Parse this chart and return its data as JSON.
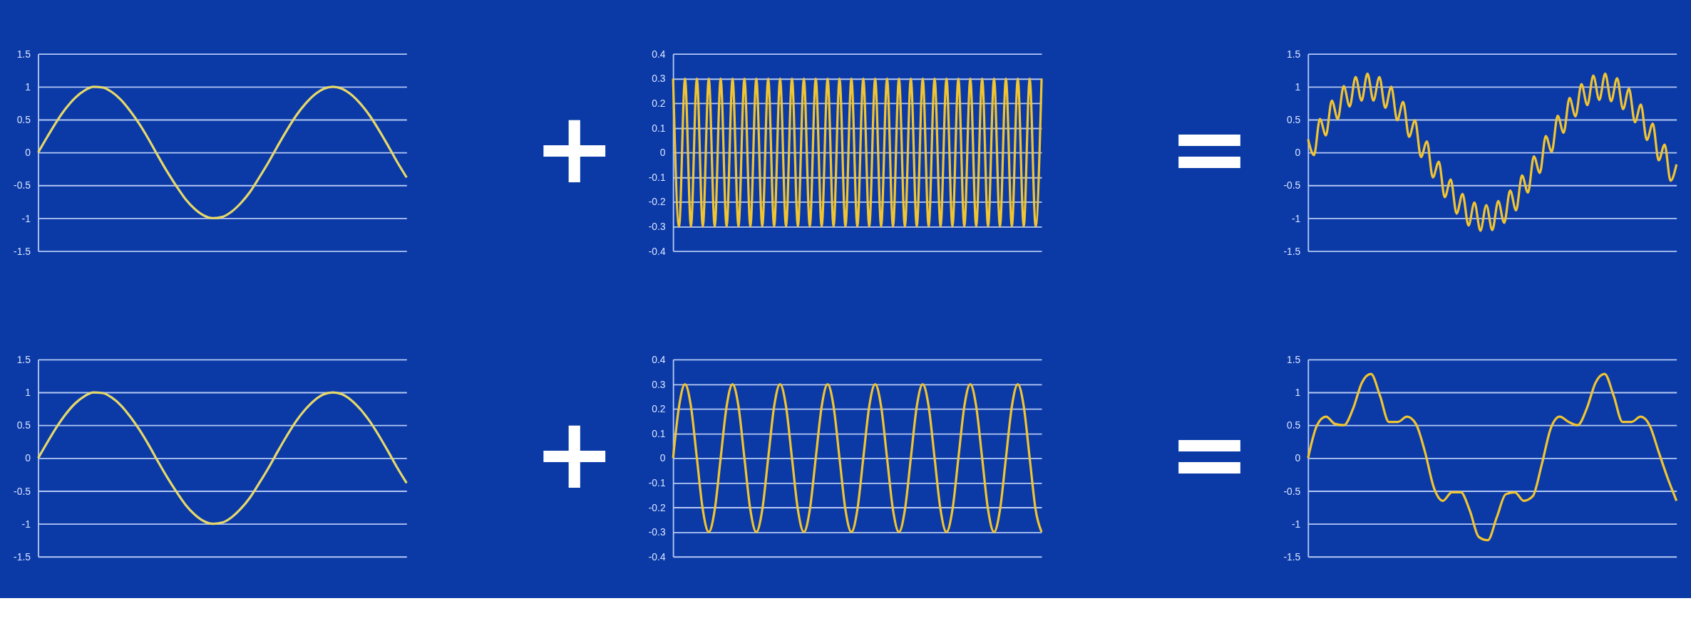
{
  "chart_data": [
    {
      "type": "line",
      "categories": [
        null,
        null,
        null,
        null,
        null,
        null,
        null,
        null,
        null,
        null,
        null,
        null,
        null,
        null,
        null,
        null,
        null,
        null,
        null,
        null,
        null,
        null,
        null,
        null,
        null,
        null,
        null,
        null,
        null,
        null,
        null,
        null,
        null,
        null,
        null,
        null,
        null,
        null,
        null,
        null,
        null
      ],
      "series": [
        {
          "color": "#e6d86a",
          "values": [
            0,
            0.24,
            0.47,
            0.67,
            0.83,
            0.94,
            1.0,
            0.99,
            0.92,
            0.8,
            0.63,
            0.43,
            0.2,
            -0.05,
            -0.29,
            -0.51,
            -0.71,
            -0.86,
            -0.96,
            -1.0,
            -0.98,
            -0.9,
            -0.77,
            -0.6,
            -0.38,
            -0.15,
            0.1,
            0.34,
            0.56,
            0.74,
            0.88,
            0.97,
            1.0,
            0.97,
            0.88,
            0.74,
            0.56,
            0.34,
            0.1,
            -0.15,
            -0.38
          ]
        }
      ],
      "ylim": [
        -1.5,
        1.5
      ],
      "yticks": [
        -1.5,
        -1,
        -0.5,
        0,
        0.5,
        1,
        1.5
      ],
      "grid": "y",
      "tick_labels": "y",
      "line_style": "solid"
    },
    {
      "type": "line",
      "categories": [
        null,
        null,
        null,
        null,
        null,
        null,
        null,
        null,
        null,
        null,
        null,
        null,
        null,
        null,
        null,
        null,
        null,
        null,
        null,
        null,
        null,
        null,
        null,
        null,
        null,
        null,
        null,
        null,
        null,
        null,
        null,
        null,
        null,
        null,
        null,
        null,
        null,
        null,
        null,
        null,
        null,
        null,
        null,
        null,
        null,
        null,
        null,
        null,
        null,
        null,
        null,
        null,
        null,
        null,
        null,
        null,
        null,
        null,
        null,
        null,
        null,
        null,
        null
      ],
      "series": [
        {
          "color": "#f0c432",
          "values": [
            0.3,
            -0.3,
            0.3,
            -0.3,
            0.3,
            -0.3,
            0.3,
            -0.3,
            0.3,
            -0.3,
            0.3,
            -0.3,
            0.3,
            -0.3,
            0.3,
            -0.3,
            0.3,
            -0.3,
            0.3,
            -0.3,
            0.3,
            -0.3,
            0.3,
            -0.3,
            0.3,
            -0.3,
            0.3,
            -0.3,
            0.3,
            -0.3,
            0.3,
            -0.3,
            0.3,
            -0.3,
            0.3,
            -0.3,
            0.3,
            -0.3,
            0.3,
            -0.3,
            0.3,
            -0.3,
            0.3,
            -0.3,
            0.3,
            -0.3,
            0.3,
            -0.3,
            0.3,
            -0.3,
            0.3,
            -0.3,
            0.3,
            -0.3,
            0.3,
            -0.3,
            0.3,
            -0.3,
            0.3,
            -0.3,
            0.3,
            -0.3,
            0.3
          ]
        }
      ],
      "ylim": [
        -0.4,
        0.4
      ],
      "yticks": [
        -0.4,
        -0.3,
        -0.2,
        -0.1,
        0,
        0.1,
        0.2,
        0.3,
        0.4
      ],
      "grid": "y",
      "tick_labels": "y",
      "line_style": "solid",
      "annotations": [
        "+"
      ]
    },
    {
      "type": "line",
      "categories": [
        null,
        null,
        null,
        null,
        null,
        null,
        null,
        null,
        null,
        null,
        null,
        null,
        null,
        null,
        null,
        null,
        null,
        null,
        null,
        null,
        null,
        null,
        null,
        null,
        null,
        null,
        null,
        null,
        null,
        null,
        null,
        null,
        null,
        null,
        null,
        null,
        null,
        null,
        null,
        null,
        null,
        null,
        null,
        null,
        null,
        null,
        null,
        null,
        null,
        null,
        null,
        null,
        null,
        null,
        null,
        null,
        null,
        null,
        null,
        null,
        null,
        null,
        null
      ],
      "series": [
        {
          "color": "#f0c432",
          "values": [
            0.2,
            -0.04,
            0.51,
            0.26,
            0.79,
            0.51,
            1.01,
            0.7,
            1.15,
            0.79,
            1.2,
            0.79,
            1.15,
            0.68,
            1.0,
            0.49,
            0.77,
            0.24,
            0.49,
            -0.07,
            0.17,
            -0.38,
            -0.14,
            -0.68,
            -0.41,
            -0.93,
            -0.63,
            -1.11,
            -0.76,
            -1.19,
            -0.8,
            -1.18,
            -0.74,
            -1.07,
            -0.58,
            -0.88,
            -0.35,
            -0.61,
            -0.06,
            -0.31,
            0.25,
            0.01,
            0.56,
            0.3,
            0.83,
            0.55,
            1.04,
            0.72,
            1.17,
            0.8,
            1.2,
            0.78,
            1.13,
            0.66,
            0.97,
            0.46,
            0.73,
            0.19,
            0.44,
            -0.12,
            0.12,
            -0.43,
            -0.18
          ]
        }
      ],
      "ylim": [
        -1.5,
        1.5
      ],
      "yticks": [
        -1.5,
        -1,
        -0.5,
        0,
        0.5,
        1,
        1.5
      ],
      "grid": "y",
      "tick_labels": "y",
      "line_style": "solid",
      "annotations": [
        "="
      ]
    },
    {
      "type": "line",
      "categories": [
        null,
        null,
        null,
        null,
        null,
        null,
        null,
        null,
        null,
        null,
        null,
        null,
        null,
        null,
        null,
        null,
        null,
        null,
        null,
        null,
        null,
        null,
        null,
        null,
        null,
        null,
        null,
        null,
        null,
        null,
        null,
        null,
        null,
        null,
        null,
        null,
        null,
        null,
        null,
        null,
        null
      ],
      "series": [
        {
          "color": "#e6d86a",
          "values": [
            0,
            0.24,
            0.47,
            0.67,
            0.83,
            0.94,
            1.0,
            0.99,
            0.92,
            0.8,
            0.63,
            0.43,
            0.2,
            -0.05,
            -0.29,
            -0.51,
            -0.71,
            -0.86,
            -0.96,
            -1.0,
            -0.98,
            -0.9,
            -0.77,
            -0.6,
            -0.38,
            -0.15,
            0.1,
            0.34,
            0.56,
            0.74,
            0.88,
            0.97,
            1.0,
            0.97,
            0.88,
            0.74,
            0.56,
            0.34,
            0.1,
            -0.15,
            -0.38
          ]
        }
      ],
      "ylim": [
        -1.5,
        1.5
      ],
      "yticks": [
        -1.5,
        -1,
        -0.5,
        0,
        0.5,
        1,
        1.5
      ],
      "grid": "y",
      "tick_labels": "y",
      "line_style": "solid"
    },
    {
      "type": "line",
      "categories": [
        null,
        null,
        null,
        null,
        null,
        null,
        null,
        null,
        null,
        null,
        null,
        null,
        null,
        null,
        null,
        null,
        null,
        null,
        null,
        null,
        null,
        null,
        null,
        null,
        null,
        null,
        null,
        null,
        null,
        null,
        null,
        null,
        null,
        null,
        null,
        null,
        null,
        null,
        null,
        null,
        null,
        null,
        null,
        null,
        null,
        null,
        null,
        null,
        null,
        null,
        null,
        null,
        null,
        null,
        null,
        null,
        null,
        null,
        null,
        null,
        null,
        null,
        null
      ],
      "series": [
        {
          "color": "#f0c432",
          "values": [
            0,
            0.21,
            0.3,
            0.21,
            0,
            -0.21,
            -0.3,
            -0.21,
            0,
            0.21,
            0.3,
            0.21,
            0,
            -0.21,
            -0.3,
            -0.21,
            0,
            0.21,
            0.3,
            0.21,
            0,
            -0.21,
            -0.3,
            -0.21,
            0,
            0.21,
            0.3,
            0.21,
            0,
            -0.21,
            -0.3,
            -0.21,
            0,
            0.21,
            0.3,
            0.21,
            0,
            -0.21,
            -0.3,
            -0.21,
            0,
            0.21,
            0.3,
            0.21,
            0,
            -0.21,
            -0.3,
            -0.21,
            0,
            0.21,
            0.3,
            0.21,
            0,
            -0.21,
            -0.3,
            -0.21,
            0,
            0.21,
            0.3,
            0.21,
            0,
            -0.21,
            -0.3
          ]
        }
      ],
      "ylim": [
        -0.4,
        0.4
      ],
      "yticks": [
        -0.4,
        -0.3,
        -0.2,
        -0.1,
        0,
        0.1,
        0.2,
        0.3,
        0.4
      ],
      "grid": "y",
      "tick_labels": "y",
      "line_style": "solid",
      "annotations": [
        "+"
      ]
    },
    {
      "type": "line",
      "categories": [
        null,
        null,
        null,
        null,
        null,
        null,
        null,
        null,
        null,
        null,
        null,
        null,
        null,
        null,
        null,
        null,
        null,
        null,
        null,
        null,
        null,
        null,
        null,
        null,
        null,
        null,
        null,
        null,
        null,
        null,
        null,
        null,
        null,
        null,
        null,
        null,
        null,
        null,
        null,
        null,
        null,
        null
      ],
      "series": [
        {
          "color": "#f0c432",
          "values": [
            0,
            0.5,
            0.63,
            0.52,
            0.5,
            0.75,
            1.15,
            1.28,
            0.95,
            0.55,
            0.55,
            0.63,
            0.52,
            0.1,
            -0.45,
            -0.65,
            -0.52,
            -0.52,
            -0.8,
            -1.2,
            -1.25,
            -0.9,
            -0.55,
            -0.52,
            -0.65,
            -0.58,
            -0.1,
            0.45,
            0.63,
            0.55,
            0.5,
            0.75,
            1.15,
            1.28,
            0.95,
            0.55,
            0.55,
            0.63,
            0.5,
            0.1,
            -0.3,
            -0.65
          ]
        }
      ],
      "ylim": [
        -1.5,
        1.5
      ],
      "yticks": [
        -1.5,
        -1,
        -0.5,
        0,
        0.5,
        1,
        1.5
      ],
      "grid": "y",
      "tick_labels": "y",
      "line_style": "solid",
      "annotations": [
        "="
      ]
    }
  ]
}
